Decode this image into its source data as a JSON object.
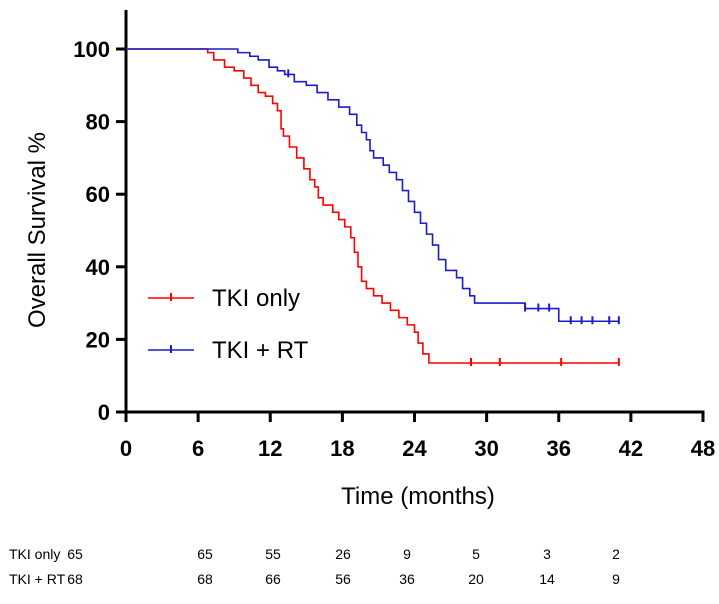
{
  "chart_data": {
    "type": "line",
    "subtype": "kaplan-meier",
    "xlabel": "Time (months)",
    "ylabel": "Overall Survival %",
    "xlim": [
      0,
      48
    ],
    "ylim": [
      0,
      100
    ],
    "xticks": [
      0,
      6,
      12,
      18,
      24,
      30,
      36,
      42,
      48
    ],
    "yticks": [
      0,
      20,
      40,
      60,
      80,
      100
    ],
    "grid": false,
    "legend": {
      "placement": "lower-left"
    },
    "series": [
      {
        "name": "TKI only",
        "color": "#ff0000",
        "steps": [
          [
            0,
            100
          ],
          [
            6.8,
            99
          ],
          [
            7.3,
            97
          ],
          [
            8.2,
            95
          ],
          [
            9.0,
            94
          ],
          [
            9.8,
            92
          ],
          [
            10.4,
            90
          ],
          [
            11.0,
            88
          ],
          [
            11.6,
            87
          ],
          [
            12.2,
            85
          ],
          [
            12.6,
            83
          ],
          [
            12.9,
            78
          ],
          [
            13.1,
            76
          ],
          [
            13.6,
            73
          ],
          [
            14.2,
            70
          ],
          [
            14.8,
            67
          ],
          [
            15.3,
            64
          ],
          [
            15.7,
            62
          ],
          [
            16.0,
            59
          ],
          [
            16.4,
            57
          ],
          [
            17.2,
            55
          ],
          [
            17.7,
            53
          ],
          [
            18.2,
            51
          ],
          [
            18.7,
            48
          ],
          [
            19.0,
            44
          ],
          [
            19.3,
            40
          ],
          [
            19.6,
            36
          ],
          [
            20.0,
            34
          ],
          [
            20.6,
            32
          ],
          [
            21.3,
            30
          ],
          [
            22.0,
            28
          ],
          [
            22.7,
            26
          ],
          [
            23.4,
            24
          ],
          [
            24.0,
            22
          ],
          [
            24.3,
            19
          ],
          [
            24.7,
            16
          ],
          [
            25.2,
            13.5
          ],
          [
            41,
            13.5
          ]
        ],
        "censored": [
          28.7,
          31.1,
          36.2,
          41
        ]
      },
      {
        "name": "TKI + RT",
        "color": "#1c1cc8",
        "steps": [
          [
            0,
            100
          ],
          [
            9.3,
            99
          ],
          [
            10.3,
            98
          ],
          [
            11.0,
            97
          ],
          [
            11.9,
            95
          ],
          [
            12.6,
            94
          ],
          [
            13.2,
            93
          ],
          [
            14.0,
            91
          ],
          [
            15.0,
            90
          ],
          [
            15.9,
            88
          ],
          [
            16.8,
            86
          ],
          [
            17.7,
            84
          ],
          [
            18.6,
            82
          ],
          [
            19.2,
            79
          ],
          [
            19.6,
            77
          ],
          [
            20.0,
            75
          ],
          [
            20.3,
            72
          ],
          [
            20.6,
            70
          ],
          [
            21.4,
            68
          ],
          [
            21.9,
            66
          ],
          [
            22.5,
            64
          ],
          [
            23.0,
            61
          ],
          [
            23.5,
            58
          ],
          [
            24.0,
            55
          ],
          [
            24.5,
            52
          ],
          [
            25.0,
            49
          ],
          [
            25.5,
            46
          ],
          [
            26.0,
            42
          ],
          [
            26.6,
            39
          ],
          [
            27.5,
            37
          ],
          [
            28.0,
            34
          ],
          [
            28.6,
            32
          ],
          [
            29.0,
            30
          ],
          [
            33.2,
            28.5
          ],
          [
            36.0,
            25
          ],
          [
            41,
            25
          ]
        ],
        "censored": [
          13.5,
          33.2,
          34.3,
          35.2,
          37.0,
          37.9,
          38.8,
          40.2,
          41
        ]
      }
    ],
    "risk_table": {
      "times": [
        0,
        6,
        12,
        18,
        24,
        30,
        36,
        42
      ],
      "rows": [
        {
          "label": "TKI only",
          "counts": [
            "65",
            "65",
            "55",
            "26",
            "9",
            "5",
            "3",
            "2"
          ]
        },
        {
          "label": "TKI + RT",
          "counts": [
            "68",
            "68",
            "66",
            "56",
            "36",
            "20",
            "14",
            "9"
          ]
        }
      ]
    }
  }
}
